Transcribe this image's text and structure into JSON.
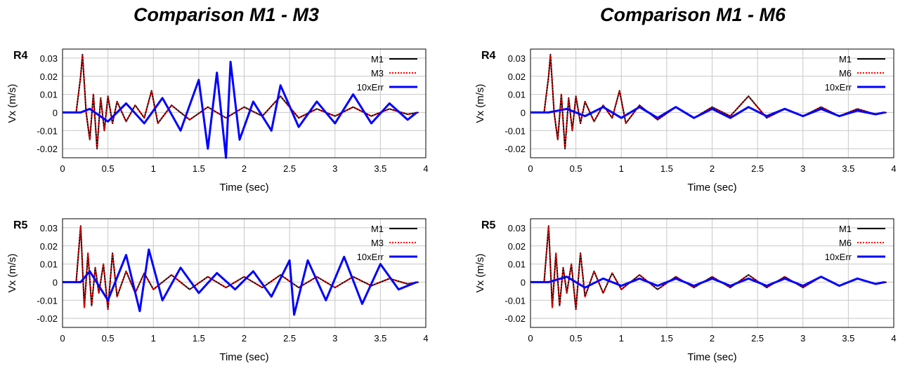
{
  "titles": [
    "Comparison M1 - M3",
    "Comparison M1 - M6"
  ],
  "chart_data": [
    {
      "type": "line",
      "panel": "R4",
      "xlabel": "Time (sec)",
      "ylabel": "Vx (m/s)",
      "xlim": [
        0,
        4
      ],
      "ylim": [
        -0.025,
        0.035
      ],
      "xticks": [
        "0",
        "0.5",
        "1",
        "1.5",
        "2",
        "2.5",
        "3",
        "3.5",
        "4"
      ],
      "yticks": [
        "-0.02",
        "-0.01",
        "0",
        "0.01",
        "0.02",
        "0.03"
      ],
      "grid": true,
      "legend": "top-right",
      "series": [
        {
          "name": "M1",
          "color": "#000000",
          "style": "solid",
          "x": [
            0,
            0.15,
            0.2,
            0.22,
            0.26,
            0.3,
            0.34,
            0.38,
            0.42,
            0.46,
            0.5,
            0.55,
            0.6,
            0.7,
            0.8,
            0.9,
            0.98,
            1.05,
            1.2,
            1.4,
            1.6,
            1.8,
            2.0,
            2.2,
            2.4,
            2.6,
            2.8,
            3.0,
            3.2,
            3.4,
            3.6,
            3.8,
            3.92
          ],
          "y": [
            0,
            0,
            0.02,
            0.032,
            0.0,
            -0.015,
            0.01,
            -0.02,
            0.008,
            -0.01,
            0.009,
            -0.006,
            0.006,
            -0.005,
            0.004,
            -0.003,
            0.012,
            -0.006,
            0.004,
            -0.004,
            0.003,
            -0.003,
            0.003,
            -0.002,
            0.009,
            -0.003,
            0.002,
            -0.002,
            0.003,
            -0.002,
            0.002,
            -0.001,
            0
          ]
        },
        {
          "name": "M3",
          "color": "#ff0000",
          "style": "dotted",
          "x": [
            0,
            0.15,
            0.2,
            0.22,
            0.26,
            0.3,
            0.34,
            0.38,
            0.42,
            0.46,
            0.5,
            0.55,
            0.6,
            0.7,
            0.8,
            0.9,
            0.98,
            1.05,
            1.2,
            1.4,
            1.6,
            1.8,
            2.0,
            2.2,
            2.4,
            2.6,
            2.8,
            3.0,
            3.2,
            3.4,
            3.6,
            3.8,
            3.92
          ],
          "y": [
            0,
            0,
            0.02,
            0.032,
            0.0,
            -0.015,
            0.01,
            -0.02,
            0.008,
            -0.01,
            0.009,
            -0.006,
            0.006,
            -0.005,
            0.004,
            -0.003,
            0.012,
            -0.006,
            0.004,
            -0.004,
            0.003,
            -0.003,
            0.003,
            -0.002,
            0.009,
            -0.003,
            0.002,
            -0.002,
            0.003,
            -0.002,
            0.002,
            -0.001,
            0
          ]
        },
        {
          "name": "10xErr",
          "color": "#0000ff",
          "style": "solid",
          "x": [
            0,
            0.2,
            0.3,
            0.5,
            0.7,
            0.9,
            1.1,
            1.3,
            1.5,
            1.6,
            1.7,
            1.8,
            1.85,
            1.95,
            2.1,
            2.3,
            2.4,
            2.6,
            2.8,
            3.0,
            3.2,
            3.4,
            3.6,
            3.8,
            3.9
          ],
          "y": [
            0,
            0,
            0.002,
            -0.005,
            0.005,
            -0.006,
            0.008,
            -0.01,
            0.018,
            -0.02,
            0.022,
            -0.025,
            0.028,
            -0.015,
            0.006,
            -0.01,
            0.015,
            -0.008,
            0.006,
            -0.006,
            0.01,
            -0.006,
            0.005,
            -0.004,
            0
          ]
        }
      ]
    },
    {
      "type": "line",
      "panel": "R4",
      "xlabel": "Time (sec)",
      "ylabel": "Vx (m/s)",
      "xlim": [
        0,
        4
      ],
      "ylim": [
        -0.025,
        0.035
      ],
      "xticks": [
        "0",
        "0.5",
        "1",
        "1.5",
        "2",
        "2.5",
        "3",
        "3.5",
        "4"
      ],
      "yticks": [
        "-0.02",
        "-0.01",
        "0",
        "0.01",
        "0.02",
        "0.03"
      ],
      "grid": true,
      "legend": "top-right",
      "series": [
        {
          "name": "M1",
          "color": "#000000",
          "style": "solid",
          "x": [
            0,
            0.15,
            0.2,
            0.22,
            0.26,
            0.3,
            0.34,
            0.38,
            0.42,
            0.46,
            0.5,
            0.55,
            0.6,
            0.7,
            0.8,
            0.9,
            0.98,
            1.05,
            1.2,
            1.4,
            1.6,
            1.8,
            2.0,
            2.2,
            2.4,
            2.6,
            2.8,
            3.0,
            3.2,
            3.4,
            3.6,
            3.8,
            3.92
          ],
          "y": [
            0,
            0,
            0.02,
            0.032,
            0.0,
            -0.015,
            0.01,
            -0.02,
            0.008,
            -0.01,
            0.009,
            -0.006,
            0.006,
            -0.005,
            0.004,
            -0.003,
            0.012,
            -0.006,
            0.004,
            -0.004,
            0.003,
            -0.003,
            0.003,
            -0.002,
            0.009,
            -0.003,
            0.002,
            -0.002,
            0.003,
            -0.002,
            0.002,
            -0.001,
            0
          ]
        },
        {
          "name": "M6",
          "color": "#ff0000",
          "style": "dotted",
          "x": [
            0,
            0.15,
            0.2,
            0.22,
            0.26,
            0.3,
            0.34,
            0.38,
            0.42,
            0.46,
            0.5,
            0.55,
            0.6,
            0.7,
            0.8,
            0.9,
            0.98,
            1.05,
            1.2,
            1.4,
            1.6,
            1.8,
            2.0,
            2.2,
            2.4,
            2.6,
            2.8,
            3.0,
            3.2,
            3.4,
            3.6,
            3.8,
            3.92
          ],
          "y": [
            0,
            0,
            0.02,
            0.032,
            0.0,
            -0.015,
            0.01,
            -0.02,
            0.008,
            -0.01,
            0.009,
            -0.006,
            0.006,
            -0.005,
            0.004,
            -0.003,
            0.012,
            -0.006,
            0.004,
            -0.004,
            0.003,
            -0.003,
            0.003,
            -0.002,
            0.009,
            -0.003,
            0.002,
            -0.002,
            0.003,
            -0.002,
            0.002,
            -0.001,
            0
          ]
        },
        {
          "name": "10xErr",
          "color": "#0000ff",
          "style": "solid",
          "x": [
            0,
            0.2,
            0.4,
            0.6,
            0.8,
            1.0,
            1.2,
            1.4,
            1.6,
            1.8,
            2.0,
            2.2,
            2.4,
            2.6,
            2.8,
            3.0,
            3.2,
            3.4,
            3.6,
            3.8,
            3.9
          ],
          "y": [
            0,
            0,
            0.002,
            -0.002,
            0.003,
            -0.003,
            0.003,
            -0.003,
            0.003,
            -0.003,
            0.002,
            -0.003,
            0.003,
            -0.002,
            0.002,
            -0.002,
            0.002,
            -0.002,
            0.001,
            -0.001,
            0
          ]
        }
      ]
    },
    {
      "type": "line",
      "panel": "R5",
      "xlabel": "Time (sec)",
      "ylabel": "Vx (m/s)",
      "xlim": [
        0,
        4
      ],
      "ylim": [
        -0.025,
        0.035
      ],
      "xticks": [
        "0",
        "0.5",
        "1",
        "1.5",
        "2",
        "2.5",
        "3",
        "3.5",
        "4"
      ],
      "yticks": [
        "-0.02",
        "-0.01",
        "0",
        "0.01",
        "0.02",
        "0.03"
      ],
      "grid": true,
      "legend": "top-right",
      "series": [
        {
          "name": "M1",
          "color": "#000000",
          "style": "solid",
          "x": [
            0,
            0.15,
            0.2,
            0.24,
            0.28,
            0.32,
            0.36,
            0.4,
            0.45,
            0.5,
            0.55,
            0.6,
            0.7,
            0.8,
            0.9,
            1.0,
            1.2,
            1.4,
            1.6,
            1.8,
            2.0,
            2.2,
            2.4,
            2.6,
            2.8,
            3.0,
            3.2,
            3.4,
            3.6,
            3.8,
            3.92
          ],
          "y": [
            0,
            0,
            0.031,
            -0.014,
            0.016,
            -0.013,
            0.008,
            -0.006,
            0.01,
            -0.015,
            0.016,
            -0.008,
            0.006,
            -0.006,
            0.005,
            -0.004,
            0.004,
            -0.004,
            0.003,
            -0.003,
            0.003,
            -0.003,
            0.004,
            -0.003,
            0.003,
            -0.003,
            0.003,
            -0.002,
            0.002,
            -0.001,
            0
          ]
        },
        {
          "name": "M3",
          "color": "#ff0000",
          "style": "dotted",
          "x": [
            0,
            0.15,
            0.2,
            0.24,
            0.28,
            0.32,
            0.36,
            0.4,
            0.45,
            0.5,
            0.55,
            0.6,
            0.7,
            0.8,
            0.9,
            1.0,
            1.2,
            1.4,
            1.6,
            1.8,
            2.0,
            2.2,
            2.4,
            2.6,
            2.8,
            3.0,
            3.2,
            3.4,
            3.6,
            3.8,
            3.92
          ],
          "y": [
            0,
            0,
            0.031,
            -0.014,
            0.016,
            -0.013,
            0.008,
            -0.006,
            0.01,
            -0.015,
            0.016,
            -0.008,
            0.006,
            -0.006,
            0.005,
            -0.004,
            0.004,
            -0.004,
            0.003,
            -0.003,
            0.003,
            -0.003,
            0.004,
            -0.003,
            0.003,
            -0.003,
            0.003,
            -0.002,
            0.002,
            -0.001,
            0
          ]
        },
        {
          "name": "10xErr",
          "color": "#0000ff",
          "style": "solid",
          "x": [
            0,
            0.2,
            0.3,
            0.5,
            0.7,
            0.85,
            0.95,
            1.1,
            1.3,
            1.5,
            1.7,
            1.9,
            2.1,
            2.3,
            2.5,
            2.55,
            2.7,
            2.9,
            3.1,
            3.3,
            3.5,
            3.7,
            3.9
          ],
          "y": [
            0,
            0,
            0.006,
            -0.01,
            0.015,
            -0.016,
            0.018,
            -0.01,
            0.008,
            -0.006,
            0.005,
            -0.004,
            0.006,
            -0.008,
            0.012,
            -0.018,
            0.012,
            -0.01,
            0.014,
            -0.012,
            0.01,
            -0.004,
            0
          ]
        }
      ]
    },
    {
      "type": "line",
      "panel": "R5",
      "xlabel": "Time (sec)",
      "ylabel": "Vx (m/s)",
      "xlim": [
        0,
        4
      ],
      "ylim": [
        -0.025,
        0.035
      ],
      "xticks": [
        "0",
        "0.5",
        "1",
        "1.5",
        "2",
        "2.5",
        "3",
        "3.5",
        "4"
      ],
      "yticks": [
        "-0.02",
        "-0.01",
        "0",
        "0.01",
        "0.02",
        "0.03"
      ],
      "grid": true,
      "legend": "top-right",
      "series": [
        {
          "name": "M1",
          "color": "#000000",
          "style": "solid",
          "x": [
            0,
            0.15,
            0.2,
            0.24,
            0.28,
            0.32,
            0.36,
            0.4,
            0.45,
            0.5,
            0.55,
            0.6,
            0.7,
            0.8,
            0.9,
            1.0,
            1.2,
            1.4,
            1.6,
            1.8,
            2.0,
            2.2,
            2.4,
            2.6,
            2.8,
            3.0,
            3.2,
            3.4,
            3.6,
            3.8,
            3.92
          ],
          "y": [
            0,
            0,
            0.031,
            -0.014,
            0.016,
            -0.013,
            0.008,
            -0.006,
            0.01,
            -0.015,
            0.016,
            -0.008,
            0.006,
            -0.006,
            0.005,
            -0.004,
            0.004,
            -0.004,
            0.003,
            -0.003,
            0.003,
            -0.003,
            0.004,
            -0.003,
            0.003,
            -0.003,
            0.003,
            -0.002,
            0.002,
            -0.001,
            0
          ]
        },
        {
          "name": "M6",
          "color": "#ff0000",
          "style": "dotted",
          "x": [
            0,
            0.15,
            0.2,
            0.24,
            0.28,
            0.32,
            0.36,
            0.4,
            0.45,
            0.5,
            0.55,
            0.6,
            0.7,
            0.8,
            0.9,
            1.0,
            1.2,
            1.4,
            1.6,
            1.8,
            2.0,
            2.2,
            2.4,
            2.6,
            2.8,
            3.0,
            3.2,
            3.4,
            3.6,
            3.8,
            3.92
          ],
          "y": [
            0,
            0,
            0.031,
            -0.014,
            0.016,
            -0.013,
            0.008,
            -0.006,
            0.01,
            -0.015,
            0.016,
            -0.008,
            0.006,
            -0.006,
            0.005,
            -0.004,
            0.004,
            -0.004,
            0.003,
            -0.003,
            0.003,
            -0.003,
            0.004,
            -0.003,
            0.003,
            -0.003,
            0.003,
            -0.002,
            0.002,
            -0.001,
            0
          ]
        },
        {
          "name": "10xErr",
          "color": "#0000ff",
          "style": "solid",
          "x": [
            0,
            0.2,
            0.4,
            0.6,
            0.8,
            1.0,
            1.2,
            1.4,
            1.6,
            1.8,
            2.0,
            2.2,
            2.4,
            2.6,
            2.8,
            3.0,
            3.2,
            3.4,
            3.6,
            3.8,
            3.9
          ],
          "y": [
            0,
            0,
            0.003,
            -0.003,
            0.002,
            -0.002,
            0.002,
            -0.002,
            0.002,
            -0.002,
            0.002,
            -0.002,
            0.002,
            -0.002,
            0.002,
            -0.002,
            0.003,
            -0.002,
            0.002,
            -0.001,
            0
          ]
        }
      ]
    }
  ]
}
